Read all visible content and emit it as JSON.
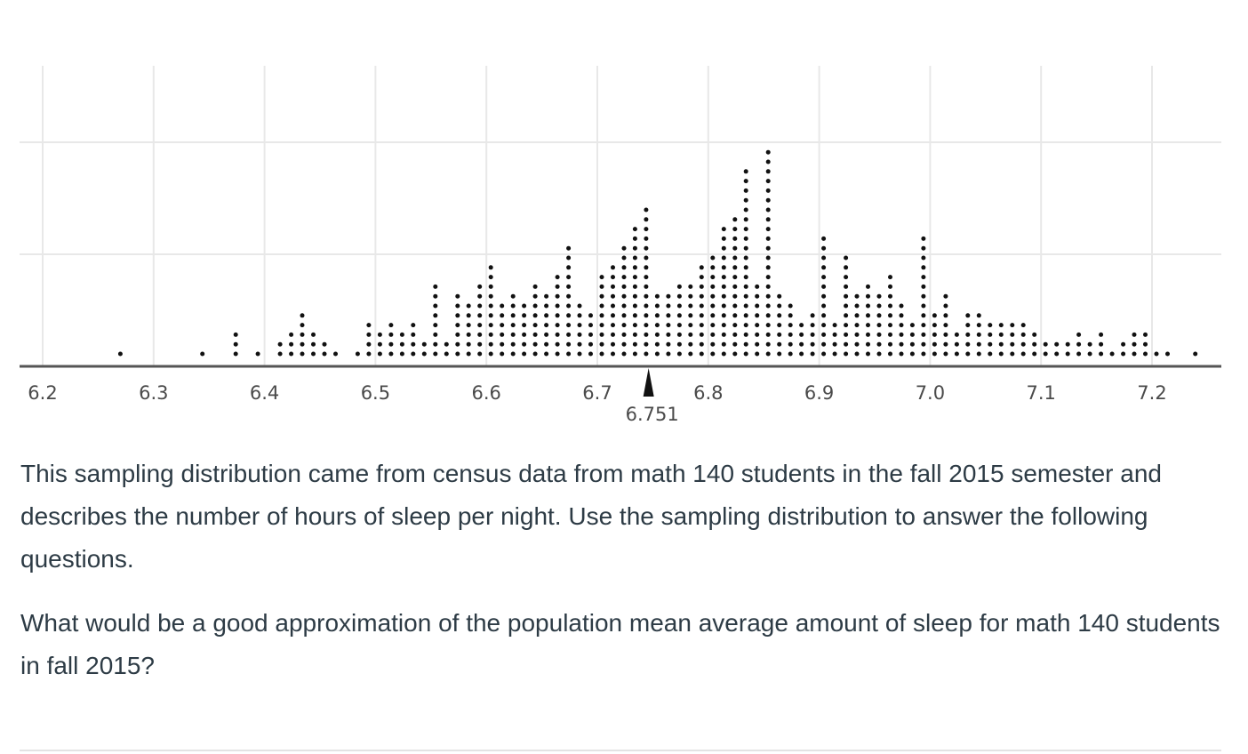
{
  "chart_data": {
    "type": "dotplot",
    "title": "",
    "xlabel": "",
    "ylabel": "",
    "xlim": [
      6.2,
      7.25
    ],
    "x_ticks": [
      "6.2",
      "6.3",
      "6.4",
      "6.5",
      "6.6",
      "6.7",
      "6.8",
      "6.9",
      "7.0",
      "7.1",
      "7.2"
    ],
    "grid": true,
    "mean_marker": {
      "value": 6.751,
      "label": "6.751"
    },
    "columns": [
      {
        "x": 6.27,
        "count": 1
      },
      {
        "x": 6.344,
        "count": 1
      },
      {
        "x": 6.374,
        "count": 3
      },
      {
        "x": 6.394,
        "count": 1
      },
      {
        "x": 6.414,
        "count": 2
      },
      {
        "x": 6.424,
        "count": 3
      },
      {
        "x": 6.434,
        "count": 5
      },
      {
        "x": 6.444,
        "count": 3
      },
      {
        "x": 6.454,
        "count": 2
      },
      {
        "x": 6.464,
        "count": 1
      },
      {
        "x": 6.484,
        "count": 1
      },
      {
        "x": 6.494,
        "count": 4
      },
      {
        "x": 6.504,
        "count": 3
      },
      {
        "x": 6.514,
        "count": 4
      },
      {
        "x": 6.524,
        "count": 3
      },
      {
        "x": 6.534,
        "count": 4
      },
      {
        "x": 6.544,
        "count": 2
      },
      {
        "x": 6.554,
        "count": 8
      },
      {
        "x": 6.564,
        "count": 2
      },
      {
        "x": 6.574,
        "count": 7
      },
      {
        "x": 6.584,
        "count": 6
      },
      {
        "x": 6.594,
        "count": 8
      },
      {
        "x": 6.604,
        "count": 10
      },
      {
        "x": 6.614,
        "count": 6
      },
      {
        "x": 6.624,
        "count": 7
      },
      {
        "x": 6.634,
        "count": 6
      },
      {
        "x": 6.644,
        "count": 8
      },
      {
        "x": 6.654,
        "count": 7
      },
      {
        "x": 6.664,
        "count": 9
      },
      {
        "x": 6.674,
        "count": 12
      },
      {
        "x": 6.684,
        "count": 6
      },
      {
        "x": 6.694,
        "count": 5
      },
      {
        "x": 6.704,
        "count": 9
      },
      {
        "x": 6.714,
        "count": 10
      },
      {
        "x": 6.724,
        "count": 12
      },
      {
        "x": 6.734,
        "count": 14
      },
      {
        "x": 6.744,
        "count": 16
      },
      {
        "x": 6.754,
        "count": 7
      },
      {
        "x": 6.764,
        "count": 7
      },
      {
        "x": 6.774,
        "count": 8
      },
      {
        "x": 6.784,
        "count": 8
      },
      {
        "x": 6.794,
        "count": 10
      },
      {
        "x": 6.804,
        "count": 11
      },
      {
        "x": 6.814,
        "count": 14
      },
      {
        "x": 6.824,
        "count": 15
      },
      {
        "x": 6.834,
        "count": 20
      },
      {
        "x": 6.844,
        "count": 8
      },
      {
        "x": 6.854,
        "count": 22
      },
      {
        "x": 6.864,
        "count": 7
      },
      {
        "x": 6.874,
        "count": 6
      },
      {
        "x": 6.884,
        "count": 4
      },
      {
        "x": 6.894,
        "count": 5
      },
      {
        "x": 6.904,
        "count": 13
      },
      {
        "x": 6.914,
        "count": 4
      },
      {
        "x": 6.924,
        "count": 11
      },
      {
        "x": 6.934,
        "count": 7
      },
      {
        "x": 6.944,
        "count": 8
      },
      {
        "x": 6.954,
        "count": 7
      },
      {
        "x": 6.964,
        "count": 9
      },
      {
        "x": 6.974,
        "count": 6
      },
      {
        "x": 6.984,
        "count": 4
      },
      {
        "x": 6.994,
        "count": 13
      },
      {
        "x": 7.004,
        "count": 5
      },
      {
        "x": 7.014,
        "count": 7
      },
      {
        "x": 7.024,
        "count": 3
      },
      {
        "x": 7.034,
        "count": 5
      },
      {
        "x": 7.044,
        "count": 5
      },
      {
        "x": 7.054,
        "count": 4
      },
      {
        "x": 7.064,
        "count": 4
      },
      {
        "x": 7.074,
        "count": 4
      },
      {
        "x": 7.084,
        "count": 4
      },
      {
        "x": 7.094,
        "count": 3
      },
      {
        "x": 7.104,
        "count": 2
      },
      {
        "x": 7.114,
        "count": 2
      },
      {
        "x": 7.124,
        "count": 2
      },
      {
        "x": 7.134,
        "count": 3
      },
      {
        "x": 7.144,
        "count": 2
      },
      {
        "x": 7.154,
        "count": 3
      },
      {
        "x": 7.164,
        "count": 1
      },
      {
        "x": 7.174,
        "count": 2
      },
      {
        "x": 7.184,
        "count": 3
      },
      {
        "x": 7.194,
        "count": 3
      },
      {
        "x": 7.204,
        "count": 1
      },
      {
        "x": 7.214,
        "count": 1
      },
      {
        "x": 7.239,
        "count": 1
      },
      {
        "x": 7.264,
        "count": 1
      },
      {
        "x": 7.274,
        "count": 1
      },
      {
        "x": 7.284,
        "count": 1
      }
    ]
  },
  "question": {
    "description": "This sampling distribution came from census data from math 140 students in the fall 2015 semester and describes the number of hours of sleep per night.  Use the sampling distribution to answer the following questions.",
    "prompt": "What would be a good approximation of the population mean average amount of sleep for math 140 students in fall 2015?"
  },
  "colors": {
    "dot": "#111111",
    "axis": "#555555",
    "grid": "#e8e8e8",
    "text": "#2d3b45",
    "tick_text": "#4a4a4a"
  }
}
